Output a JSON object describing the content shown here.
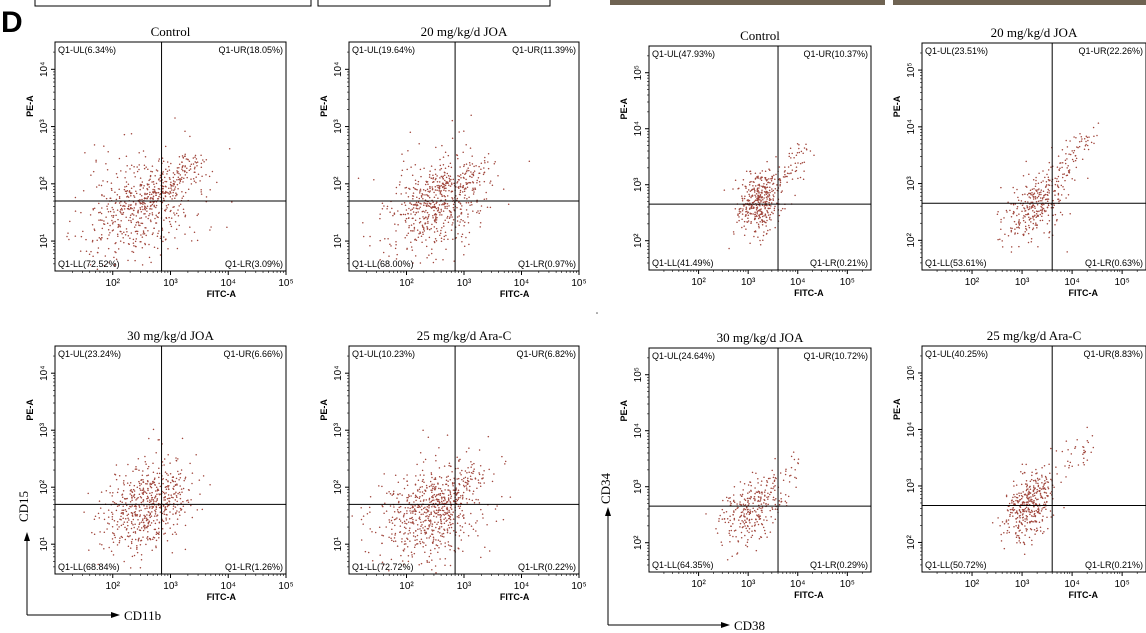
{
  "figure": {
    "panel_letter": "D",
    "colors": {
      "dots": "#a0463c",
      "frame": "#000000",
      "photo_strip": "#6f6352"
    }
  },
  "markers": {
    "left": {
      "x_marker": "CD11b",
      "y_marker": "CD15"
    },
    "right": {
      "x_marker": "CD38",
      "y_marker": "CD34"
    }
  },
  "chart_data": [
    {
      "type": "scatter",
      "group": "left",
      "title": "Control",
      "xlabel": "FITC-A",
      "ylabel": "PE-A",
      "scale": "log",
      "xlim": [
        10,
        100000
      ],
      "ylim": [
        3,
        30000
      ],
      "x_ticks": [
        "10²",
        "10³",
        "10⁴",
        "10⁵"
      ],
      "y_ticks": [
        "10¹",
        "10²",
        "10³",
        "10⁴"
      ],
      "gate": {
        "x": 700,
        "y": 50
      },
      "quadrants": {
        "UL": "Q1-UL(6.34%)",
        "UR": "Q1-UR(18.05%)",
        "LL": "Q1-LL(72.52%)",
        "LR": "Q1-LR(3.09%)"
      },
      "cloud": {
        "center": [
          300,
          40
        ],
        "spread": [
          0.5,
          0.45
        ],
        "diag": [
          3000,
          250
        ],
        "n": 700,
        "diag_fraction": 0.22
      }
    },
    {
      "type": "scatter",
      "group": "left",
      "title": "20 mg/kg/d JOA",
      "xlabel": "FITC-A",
      "ylabel": "PE-A",
      "scale": "log",
      "xlim": [
        10,
        100000
      ],
      "ylim": [
        3,
        30000
      ],
      "x_ticks": [
        "10²",
        "10³",
        "10⁴",
        "10⁵"
      ],
      "y_ticks": [
        "10¹",
        "10²",
        "10³",
        "10⁴"
      ],
      "gate": {
        "x": 700,
        "y": 50
      },
      "quadrants": {
        "UL": "Q1-UL(19.64%)",
        "UR": "Q1-UR(11.39%)",
        "LL": "Q1-LL(68.00%)",
        "LR": "Q1-LR(0.97%)"
      },
      "cloud": {
        "center": [
          350,
          45
        ],
        "spread": [
          0.42,
          0.42
        ],
        "diag": [
          1800,
          200
        ],
        "n": 650,
        "diag_fraction": 0.12
      }
    },
    {
      "type": "scatter",
      "group": "left",
      "title": "30 mg/kg/d JOA",
      "xlabel": "FITC-A",
      "ylabel": "PE-A",
      "scale": "log",
      "xlim": [
        10,
        100000
      ],
      "ylim": [
        3,
        30000
      ],
      "x_ticks": [
        "10²",
        "10³",
        "10⁴",
        "10⁵"
      ],
      "y_ticks": [
        "10¹",
        "10²",
        "10³",
        "10⁴"
      ],
      "gate": {
        "x": 700,
        "y": 50
      },
      "quadrants": {
        "UL": "Q1-UL(23.24%)",
        "UR": "Q1-UR(6.66%)",
        "LL": "Q1-LL(68.84%)",
        "LR": "Q1-LR(1.26%)"
      },
      "cloud": {
        "center": [
          380,
          45
        ],
        "spread": [
          0.38,
          0.4
        ],
        "diag": [
          1500,
          150
        ],
        "n": 600,
        "diag_fraction": 0.1
      }
    },
    {
      "type": "scatter",
      "group": "left",
      "title": "25 mg/kg/d Ara-C",
      "xlabel": "FITC-A",
      "ylabel": "PE-A",
      "scale": "log",
      "xlim": [
        10,
        100000
      ],
      "ylim": [
        3,
        30000
      ],
      "x_ticks": [
        "10²",
        "10³",
        "10⁴",
        "10⁵"
      ],
      "y_ticks": [
        "10¹",
        "10²",
        "10³",
        "10⁴"
      ],
      "gate": {
        "x": 700,
        "y": 50
      },
      "quadrants": {
        "UL": "Q1-UL(10.23%)",
        "UR": "Q1-UR(6.82%)",
        "LL": "Q1-LL(72.72%)",
        "LR": "Q1-LR(0.22%)"
      },
      "cloud": {
        "center": [
          250,
          35
        ],
        "spread": [
          0.5,
          0.45
        ],
        "diag": [
          1500,
          180
        ],
        "n": 750,
        "diag_fraction": 0.15
      }
    },
    {
      "type": "scatter",
      "group": "right",
      "title": "Control",
      "xlabel": "FITC-A",
      "ylabel": "PE-A",
      "scale": "log",
      "xlim": [
        10,
        300000
      ],
      "ylim": [
        30,
        300000
      ],
      "x_ticks": [
        "10²",
        "10³",
        "10⁴",
        "10⁵"
      ],
      "y_ticks": [
        "10²",
        "10³",
        "10⁴",
        "10⁵"
      ],
      "gate": {
        "x": 4000,
        "y": 450
      },
      "quadrants": {
        "UL": "Q1-UL(47.93%)",
        "UR": "Q1-UR(10.37%)",
        "LL": "Q1-LL(41.49%)",
        "LR": "Q1-LR(0.21%)"
      },
      "cloud": {
        "center": [
          1600,
          500
        ],
        "spread": [
          0.22,
          0.28
        ],
        "diag": [
          15000,
          4000
        ],
        "n": 450,
        "diag_fraction": 0.18
      }
    },
    {
      "type": "scatter",
      "group": "right",
      "title": "20 mg/kg/d JOA",
      "xlabel": "FITC-A",
      "ylabel": "PE-A",
      "scale": "log",
      "xlim": [
        10,
        300000
      ],
      "ylim": [
        30,
        300000
      ],
      "x_ticks": [
        "10²",
        "10³",
        "10⁴",
        "10⁵"
      ],
      "y_ticks": [
        "10²",
        "10³",
        "10⁴",
        "10⁵"
      ],
      "gate": {
        "x": 4000,
        "y": 450
      },
      "quadrants": {
        "UL": "Q1-UL(23.51%)",
        "UR": "Q1-UR(22.26%)",
        "LL": "Q1-LL(53.61%)",
        "LR": "Q1-LR(0.63%)"
      },
      "cloud": {
        "center": [
          1800,
          380
        ],
        "spread": [
          0.3,
          0.3
        ],
        "diag": [
          25000,
          8000
        ],
        "n": 380,
        "diag_fraction": 0.3
      }
    },
    {
      "type": "scatter",
      "group": "right",
      "title": "30 mg/kg/d JOA",
      "xlabel": "FITC-A",
      "ylabel": "PE-A",
      "scale": "log",
      "xlim": [
        10,
        300000
      ],
      "ylim": [
        30,
        300000
      ],
      "x_ticks": [
        "10²",
        "10³",
        "10⁴",
        "10⁵"
      ],
      "y_ticks": [
        "10²",
        "10³",
        "10⁴",
        "10⁵"
      ],
      "gate": {
        "x": 4000,
        "y": 450
      },
      "quadrants": {
        "UL": "Q1-UL(24.64%)",
        "UR": "Q1-UR(10.72%)",
        "LL": "Q1-LL(64.35%)",
        "LR": "Q1-LR(0.29%)"
      },
      "cloud": {
        "center": [
          1100,
          380
        ],
        "spread": [
          0.32,
          0.3
        ],
        "diag": [
          10000,
          3000
        ],
        "n": 320,
        "diag_fraction": 0.12
      }
    },
    {
      "type": "scatter",
      "group": "right",
      "title": "25 mg/kg/d Ara-C",
      "xlabel": "FITC-A",
      "ylabel": "PE-A",
      "scale": "log",
      "xlim": [
        10,
        300000
      ],
      "ylim": [
        30,
        300000
      ],
      "x_ticks": [
        "10²",
        "10³",
        "10⁴",
        "10⁵"
      ],
      "y_ticks": [
        "10²",
        "10³",
        "10⁴",
        "10⁵"
      ],
      "gate": {
        "x": 4000,
        "y": 450
      },
      "quadrants": {
        "UL": "Q1-UL(40.25%)",
        "UR": "Q1-UR(8.83%)",
        "LL": "Q1-LL(50.72%)",
        "LR": "Q1-LR(0.21%)"
      },
      "cloud": {
        "center": [
          1400,
          420
        ],
        "spread": [
          0.25,
          0.3
        ],
        "diag": [
          20000,
          6000
        ],
        "n": 420,
        "diag_fraction": 0.15
      }
    }
  ]
}
